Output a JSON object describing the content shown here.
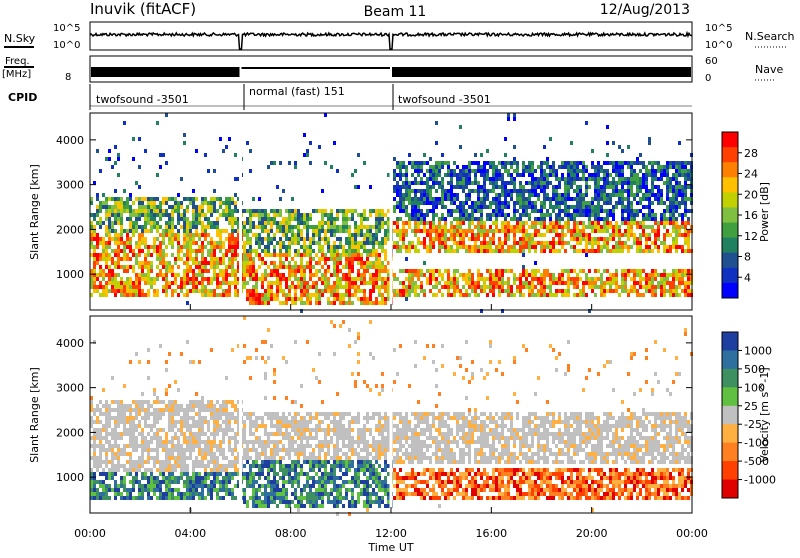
{
  "header": {
    "station": "Inuvik (fitACF)",
    "beam": "Beam 11",
    "date": "12/Aug/2013"
  },
  "strips": {
    "nsky_label": "N.Sky",
    "nsearch_label": "N.Search",
    "nsky_ticks": [
      "10^5",
      "10^0"
    ],
    "nsearch_ticks": [
      "10^5",
      "10^0"
    ],
    "freq_label": "Freq.",
    "freq_unit": "[MHz]",
    "freq_ticks": [
      "8"
    ],
    "nave_label": "Nave",
    "nave_ticks": [
      "60",
      "0"
    ],
    "cpid_label": "CPID",
    "cpid_segments": [
      {
        "label": "twofsound -3501",
        "start": 0,
        "end": 6
      },
      {
        "label": "normal (fast) 151",
        "start": 6,
        "end": 12
      },
      {
        "label": "twofsound -3501",
        "start": 12,
        "end": 24
      }
    ]
  },
  "chart_data": [
    {
      "type": "heatmap",
      "name": "power",
      "ylabel": "Slant Range [km]",
      "ylim": [
        200,
        4600
      ],
      "yticks": [
        1000,
        2000,
        3000,
        4000
      ],
      "xlim": [
        0,
        24
      ],
      "xticks": [
        0,
        4,
        8,
        12,
        16,
        20,
        24
      ],
      "colorbar": {
        "label": "Power [dB]",
        "ticks": [
          "28",
          "24",
          "20",
          "16",
          "12",
          "8",
          "4"
        ],
        "colors": [
          "#ff0000",
          "#ff4000",
          "#ff8000",
          "#ffc000",
          "#c0d000",
          "#80c040",
          "#40a040",
          "#208060",
          "#205090",
          "#1030c0",
          "#0000ff"
        ]
      },
      "bands": [
        {
          "x": [
            0,
            6
          ],
          "range": [
            500,
            1900
          ],
          "level": "high"
        },
        {
          "x": [
            0,
            6
          ],
          "range": [
            1900,
            2700
          ],
          "level": "mid"
        },
        {
          "x": [
            6,
            12
          ],
          "range": [
            300,
            1500
          ],
          "level": "high"
        },
        {
          "x": [
            6,
            12
          ],
          "range": [
            1500,
            2500
          ],
          "level": "mid"
        },
        {
          "x": [
            12,
            24
          ],
          "range": [
            1500,
            2200
          ],
          "level": "high"
        },
        {
          "x": [
            12,
            24
          ],
          "range": [
            500,
            1100
          ],
          "level": "high"
        },
        {
          "x": [
            12,
            24
          ],
          "range": [
            2200,
            3500
          ],
          "level": "low"
        }
      ]
    },
    {
      "type": "heatmap",
      "name": "velocity",
      "ylabel": "Slant Range [km]",
      "ylim": [
        200,
        4600
      ],
      "yticks": [
        1000,
        2000,
        3000,
        4000
      ],
      "xlim": [
        0,
        24
      ],
      "xticks": [
        0,
        4,
        8,
        12,
        16,
        20,
        24
      ],
      "xtick_labels": [
        "00:00",
        "04:00",
        "08:00",
        "12:00",
        "16:00",
        "20:00",
        "00:00"
      ],
      "xlabel": "Time UT",
      "colorbar": {
        "label": "Velocity [m s^-1]",
        "ticks": [
          "1000",
          "500",
          "100",
          "25",
          "-25",
          "-100",
          "-500",
          "-1000"
        ],
        "colors": [
          "#1f3fa0",
          "#2f6fa0",
          "#3f9060",
          "#60c040",
          "#c0c0c0",
          "#ffb040",
          "#ff8020",
          "#ff4000",
          "#e00000"
        ]
      },
      "bands": [
        {
          "x": [
            0,
            6
          ],
          "range": [
            500,
            1100
          ],
          "level": "pos"
        },
        {
          "x": [
            0,
            6
          ],
          "range": [
            1100,
            2700
          ],
          "level": "gs"
        },
        {
          "x": [
            6,
            12
          ],
          "range": [
            300,
            1400
          ],
          "level": "pos"
        },
        {
          "x": [
            6,
            12
          ],
          "range": [
            1400,
            2500
          ],
          "level": "gs"
        },
        {
          "x": [
            12,
            24
          ],
          "range": [
            500,
            1200
          ],
          "level": "neg"
        },
        {
          "x": [
            12,
            24
          ],
          "range": [
            1300,
            2500
          ],
          "level": "gs"
        }
      ]
    }
  ]
}
